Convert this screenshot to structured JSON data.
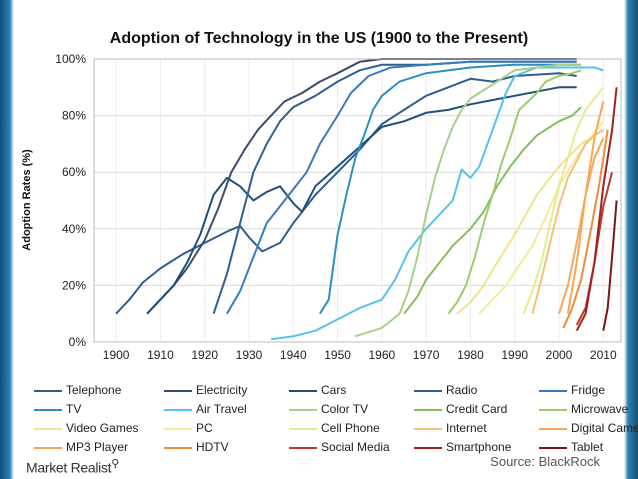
{
  "chart_data": {
    "type": "line",
    "title": "Adoption of Technology in the US (1900 to the Present)",
    "xlabel": "",
    "ylabel": "Adoption Rates (%)",
    "xlim": [
      1895,
      2014
    ],
    "ylim": [
      0,
      100
    ],
    "x_ticks": [
      1900,
      1910,
      1920,
      1930,
      1940,
      1950,
      1960,
      1970,
      1980,
      1990,
      2000,
      2010
    ],
    "y_ticks": [
      0,
      20,
      40,
      60,
      80,
      100
    ],
    "y_tick_labels": [
      "0%",
      "20%",
      "40%",
      "60%",
      "80%",
      "100%"
    ],
    "legend_position": "bottom",
    "series": [
      {
        "name": "Telephone",
        "color": "#2e5d8e",
        "points": [
          [
            1900,
            10
          ],
          [
            1903,
            15
          ],
          [
            1906,
            21
          ],
          [
            1910,
            26
          ],
          [
            1915,
            31
          ],
          [
            1920,
            35
          ],
          [
            1925,
            39
          ],
          [
            1928,
            41
          ],
          [
            1930,
            37
          ],
          [
            1933,
            32
          ],
          [
            1937,
            35
          ],
          [
            1940,
            42
          ],
          [
            1945,
            52
          ],
          [
            1950,
            60
          ],
          [
            1955,
            68
          ],
          [
            1960,
            77
          ],
          [
            1965,
            82
          ],
          [
            1970,
            87
          ],
          [
            1975,
            90
          ],
          [
            1980,
            93
          ],
          [
            1985,
            92
          ],
          [
            1990,
            94
          ],
          [
            2000,
            95
          ],
          [
            2004,
            94
          ]
        ]
      },
      {
        "name": "Electricity",
        "color": "#3b4b6b",
        "points": [
          [
            1907,
            10
          ],
          [
            1910,
            15
          ],
          [
            1913,
            20
          ],
          [
            1916,
            26
          ],
          [
            1920,
            36
          ],
          [
            1923,
            47
          ],
          [
            1926,
            60
          ],
          [
            1929,
            68
          ],
          [
            1932,
            75
          ],
          [
            1935,
            80
          ],
          [
            1938,
            85
          ],
          [
            1942,
            88
          ],
          [
            1946,
            92
          ],
          [
            1950,
            95
          ],
          [
            1955,
            99
          ],
          [
            1960,
            100
          ],
          [
            1970,
            100
          ],
          [
            1980,
            100
          ],
          [
            1990,
            100
          ],
          [
            2004,
            100
          ]
        ]
      },
      {
        "name": "Cars",
        "color": "#1f4e79",
        "points": [
          [
            1907,
            10
          ],
          [
            1910,
            15
          ],
          [
            1913,
            20
          ],
          [
            1916,
            28
          ],
          [
            1919,
            38
          ],
          [
            1922,
            52
          ],
          [
            1925,
            58
          ],
          [
            1928,
            55
          ],
          [
            1931,
            50
          ],
          [
            1934,
            53
          ],
          [
            1937,
            55
          ],
          [
            1940,
            49
          ],
          [
            1942,
            46
          ],
          [
            1945,
            55
          ],
          [
            1950,
            62
          ],
          [
            1955,
            69
          ],
          [
            1960,
            76
          ],
          [
            1965,
            78
          ],
          [
            1970,
            81
          ],
          [
            1975,
            82
          ],
          [
            1980,
            84
          ],
          [
            1990,
            87
          ],
          [
            2000,
            90
          ],
          [
            2004,
            90
          ]
        ]
      },
      {
        "name": "Radio",
        "color": "#2f5f8f",
        "points": [
          [
            1922,
            10
          ],
          [
            1925,
            24
          ],
          [
            1928,
            42
          ],
          [
            1931,
            60
          ],
          [
            1934,
            70
          ],
          [
            1937,
            78
          ],
          [
            1940,
            83
          ],
          [
            1945,
            87
          ],
          [
            1950,
            92
          ],
          [
            1955,
            96
          ],
          [
            1960,
            98
          ],
          [
            1970,
            98
          ],
          [
            1980,
            99
          ],
          [
            2004,
            99
          ]
        ]
      },
      {
        "name": "Fridge",
        "color": "#3a7ab8",
        "points": [
          [
            1925,
            10
          ],
          [
            1928,
            18
          ],
          [
            1931,
            30
          ],
          [
            1934,
            42
          ],
          [
            1937,
            48
          ],
          [
            1940,
            54
          ],
          [
            1943,
            60
          ],
          [
            1946,
            70
          ],
          [
            1950,
            80
          ],
          [
            1953,
            88
          ],
          [
            1957,
            94
          ],
          [
            1962,
            97
          ],
          [
            1970,
            98
          ],
          [
            1980,
            99
          ],
          [
            2004,
            99
          ]
        ]
      },
      {
        "name": "TV",
        "color": "#2b8fc0",
        "points": [
          [
            1946,
            10
          ],
          [
            1948,
            15
          ],
          [
            1950,
            38
          ],
          [
            1952,
            52
          ],
          [
            1954,
            65
          ],
          [
            1956,
            73
          ],
          [
            1958,
            82
          ],
          [
            1960,
            87
          ],
          [
            1964,
            92
          ],
          [
            1970,
            95
          ],
          [
            1980,
            97
          ],
          [
            1990,
            98
          ],
          [
            2000,
            98
          ],
          [
            2005,
            98
          ]
        ]
      },
      {
        "name": "Air Travel",
        "color": "#55c2ee",
        "points": [
          [
            1935,
            1
          ],
          [
            1940,
            2
          ],
          [
            1945,
            4
          ],
          [
            1950,
            8
          ],
          [
            1955,
            12
          ],
          [
            1960,
            15
          ],
          [
            1963,
            22
          ],
          [
            1966,
            32
          ],
          [
            1970,
            40
          ],
          [
            1973,
            45
          ],
          [
            1976,
            50
          ],
          [
            1978,
            61
          ],
          [
            1980,
            58
          ],
          [
            1982,
            62
          ],
          [
            1985,
            75
          ],
          [
            1988,
            88
          ],
          [
            1990,
            94
          ],
          [
            1995,
            97
          ],
          [
            2000,
            97
          ],
          [
            2005,
            97
          ],
          [
            2008,
            97
          ],
          [
            2010,
            96
          ]
        ]
      },
      {
        "name": "Color TV",
        "color": "#a6d08a",
        "points": [
          [
            1954,
            2
          ],
          [
            1960,
            5
          ],
          [
            1964,
            10
          ],
          [
            1966,
            18
          ],
          [
            1968,
            30
          ],
          [
            1970,
            45
          ],
          [
            1972,
            58
          ],
          [
            1974,
            68
          ],
          [
            1976,
            76
          ],
          [
            1978,
            82
          ],
          [
            1980,
            86
          ],
          [
            1985,
            91
          ],
          [
            1990,
            96
          ],
          [
            1995,
            97
          ],
          [
            2000,
            98
          ],
          [
            2005,
            98
          ]
        ]
      },
      {
        "name": "Credit Card",
        "color": "#84bf5c",
        "points": [
          [
            1965,
            10
          ],
          [
            1968,
            16
          ],
          [
            1970,
            22
          ],
          [
            1973,
            28
          ],
          [
            1976,
            34
          ],
          [
            1980,
            40
          ],
          [
            1983,
            46
          ],
          [
            1986,
            55
          ],
          [
            1989,
            62
          ],
          [
            1992,
            68
          ],
          [
            1995,
            73
          ],
          [
            1998,
            76
          ],
          [
            2000,
            78
          ],
          [
            2003,
            80
          ],
          [
            2005,
            83
          ]
        ]
      },
      {
        "name": "Microwave",
        "color": "#9ccc6e",
        "points": [
          [
            1975,
            10
          ],
          [
            1977,
            14
          ],
          [
            1979,
            20
          ],
          [
            1981,
            30
          ],
          [
            1983,
            42
          ],
          [
            1985,
            52
          ],
          [
            1987,
            63
          ],
          [
            1989,
            72
          ],
          [
            1991,
            82
          ],
          [
            1993,
            85
          ],
          [
            1995,
            88
          ],
          [
            1997,
            92
          ],
          [
            2000,
            94
          ],
          [
            2003,
            95
          ],
          [
            2005,
            96
          ]
        ]
      },
      {
        "name": "Video Games",
        "color": "#f0e48a",
        "points": [
          [
            1977,
            10
          ],
          [
            1980,
            14
          ],
          [
            1983,
            20
          ],
          [
            1986,
            28
          ],
          [
            1990,
            38
          ],
          [
            1995,
            52
          ],
          [
            2000,
            62
          ],
          [
            2005,
            70
          ],
          [
            2010,
            75
          ]
        ]
      },
      {
        "name": "PC",
        "color": "#f4e99c",
        "points": [
          [
            1982,
            10
          ],
          [
            1985,
            15
          ],
          [
            1988,
            20
          ],
          [
            1991,
            27
          ],
          [
            1994,
            34
          ],
          [
            1997,
            44
          ],
          [
            2000,
            55
          ],
          [
            2003,
            63
          ],
          [
            2006,
            70
          ],
          [
            2010,
            78
          ]
        ]
      },
      {
        "name": "Cell Phone",
        "color": "#e6eb8c",
        "points": [
          [
            1992,
            10
          ],
          [
            1994,
            18
          ],
          [
            1996,
            28
          ],
          [
            1998,
            42
          ],
          [
            2000,
            55
          ],
          [
            2002,
            65
          ],
          [
            2004,
            75
          ],
          [
            2006,
            82
          ],
          [
            2008,
            86
          ],
          [
            2010,
            90
          ]
        ]
      },
      {
        "name": "Internet",
        "color": "#f7c07a",
        "points": [
          [
            1994,
            10
          ],
          [
            1996,
            22
          ],
          [
            1998,
            35
          ],
          [
            2000,
            48
          ],
          [
            2002,
            58
          ],
          [
            2004,
            64
          ],
          [
            2006,
            70
          ],
          [
            2008,
            73
          ],
          [
            2010,
            75
          ]
        ]
      },
      {
        "name": "Digital Camera",
        "color": "#f2a85a",
        "points": [
          [
            2000,
            10
          ],
          [
            2002,
            20
          ],
          [
            2004,
            35
          ],
          [
            2006,
            52
          ],
          [
            2008,
            65
          ],
          [
            2010,
            72
          ]
        ]
      },
      {
        "name": "MP3 Player",
        "color": "#f8a650",
        "points": [
          [
            2002,
            10
          ],
          [
            2004,
            28
          ],
          [
            2006,
            52
          ],
          [
            2008,
            72
          ],
          [
            2010,
            85
          ]
        ]
      },
      {
        "name": "HDTV",
        "color": "#ed8c3a",
        "points": [
          [
            2001,
            5
          ],
          [
            2003,
            12
          ],
          [
            2005,
            22
          ],
          [
            2007,
            38
          ],
          [
            2009,
            55
          ],
          [
            2011,
            75
          ]
        ]
      },
      {
        "name": "Social Media",
        "color": "#c0392b",
        "points": [
          [
            2004,
            6
          ],
          [
            2006,
            12
          ],
          [
            2008,
            28
          ],
          [
            2010,
            48
          ],
          [
            2012,
            60
          ]
        ]
      },
      {
        "name": "Smartphone",
        "color": "#a32020",
        "points": [
          [
            2004,
            4
          ],
          [
            2006,
            10
          ],
          [
            2008,
            28
          ],
          [
            2010,
            55
          ],
          [
            2012,
            75
          ],
          [
            2013,
            90
          ]
        ]
      },
      {
        "name": "Tablet",
        "color": "#7a1515",
        "points": [
          [
            2010,
            4
          ],
          [
            2011,
            12
          ],
          [
            2012,
            30
          ],
          [
            2013,
            50
          ]
        ]
      }
    ]
  },
  "branding": {
    "logo_text": "Market Realist",
    "source": "Source: BlackRock"
  }
}
